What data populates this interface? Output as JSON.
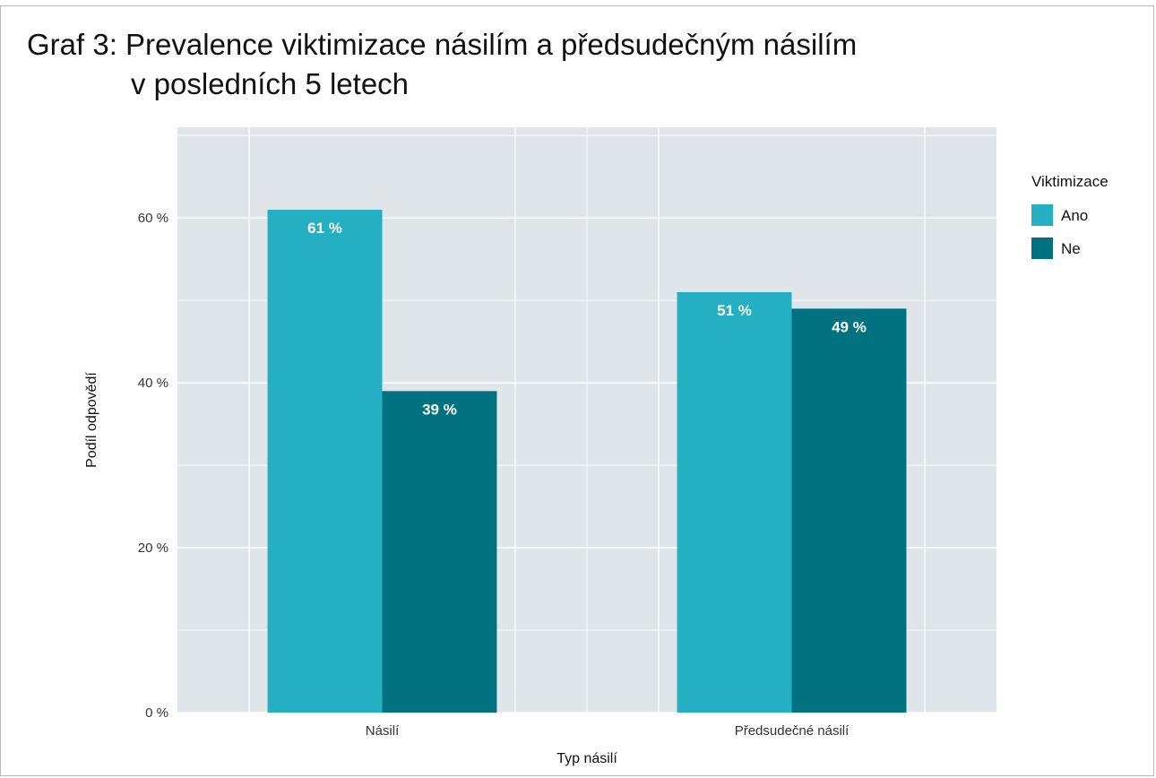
{
  "title_line1": "Graf 3: Prevalence viktimizace násilím a předsudečným násilím",
  "title_line2": "v posledních 5 letech",
  "colors": {
    "panel": "#e0e5ea",
    "grid": "#ffffff",
    "Ano": "#25afc3",
    "Ne": "#037280"
  },
  "chart_data": {
    "type": "bar",
    "title": "Graf 3: Prevalence viktimizace násilím a předsudečným násilím v posledních 5 letech",
    "categories": [
      "Násilí",
      "Předsudečné násilí"
    ],
    "series": [
      {
        "name": "Ano",
        "values": [
          61,
          51
        ],
        "labels": [
          "61 %",
          "51 %"
        ]
      },
      {
        "name": "Ne",
        "values": [
          39,
          49
        ],
        "labels": [
          "39 %",
          "49 %"
        ]
      }
    ],
    "xlabel": "Typ násilí",
    "ylabel": "Podíl odpovědí",
    "ylim": [
      0,
      71
    ],
    "yticks": [
      0,
      20,
      40,
      60
    ],
    "ytick_labels": [
      "0 %",
      "20 %",
      "40 %",
      "60 %"
    ],
    "grid": true,
    "legend_title": "Viktimizace",
    "legend_position": "right"
  }
}
